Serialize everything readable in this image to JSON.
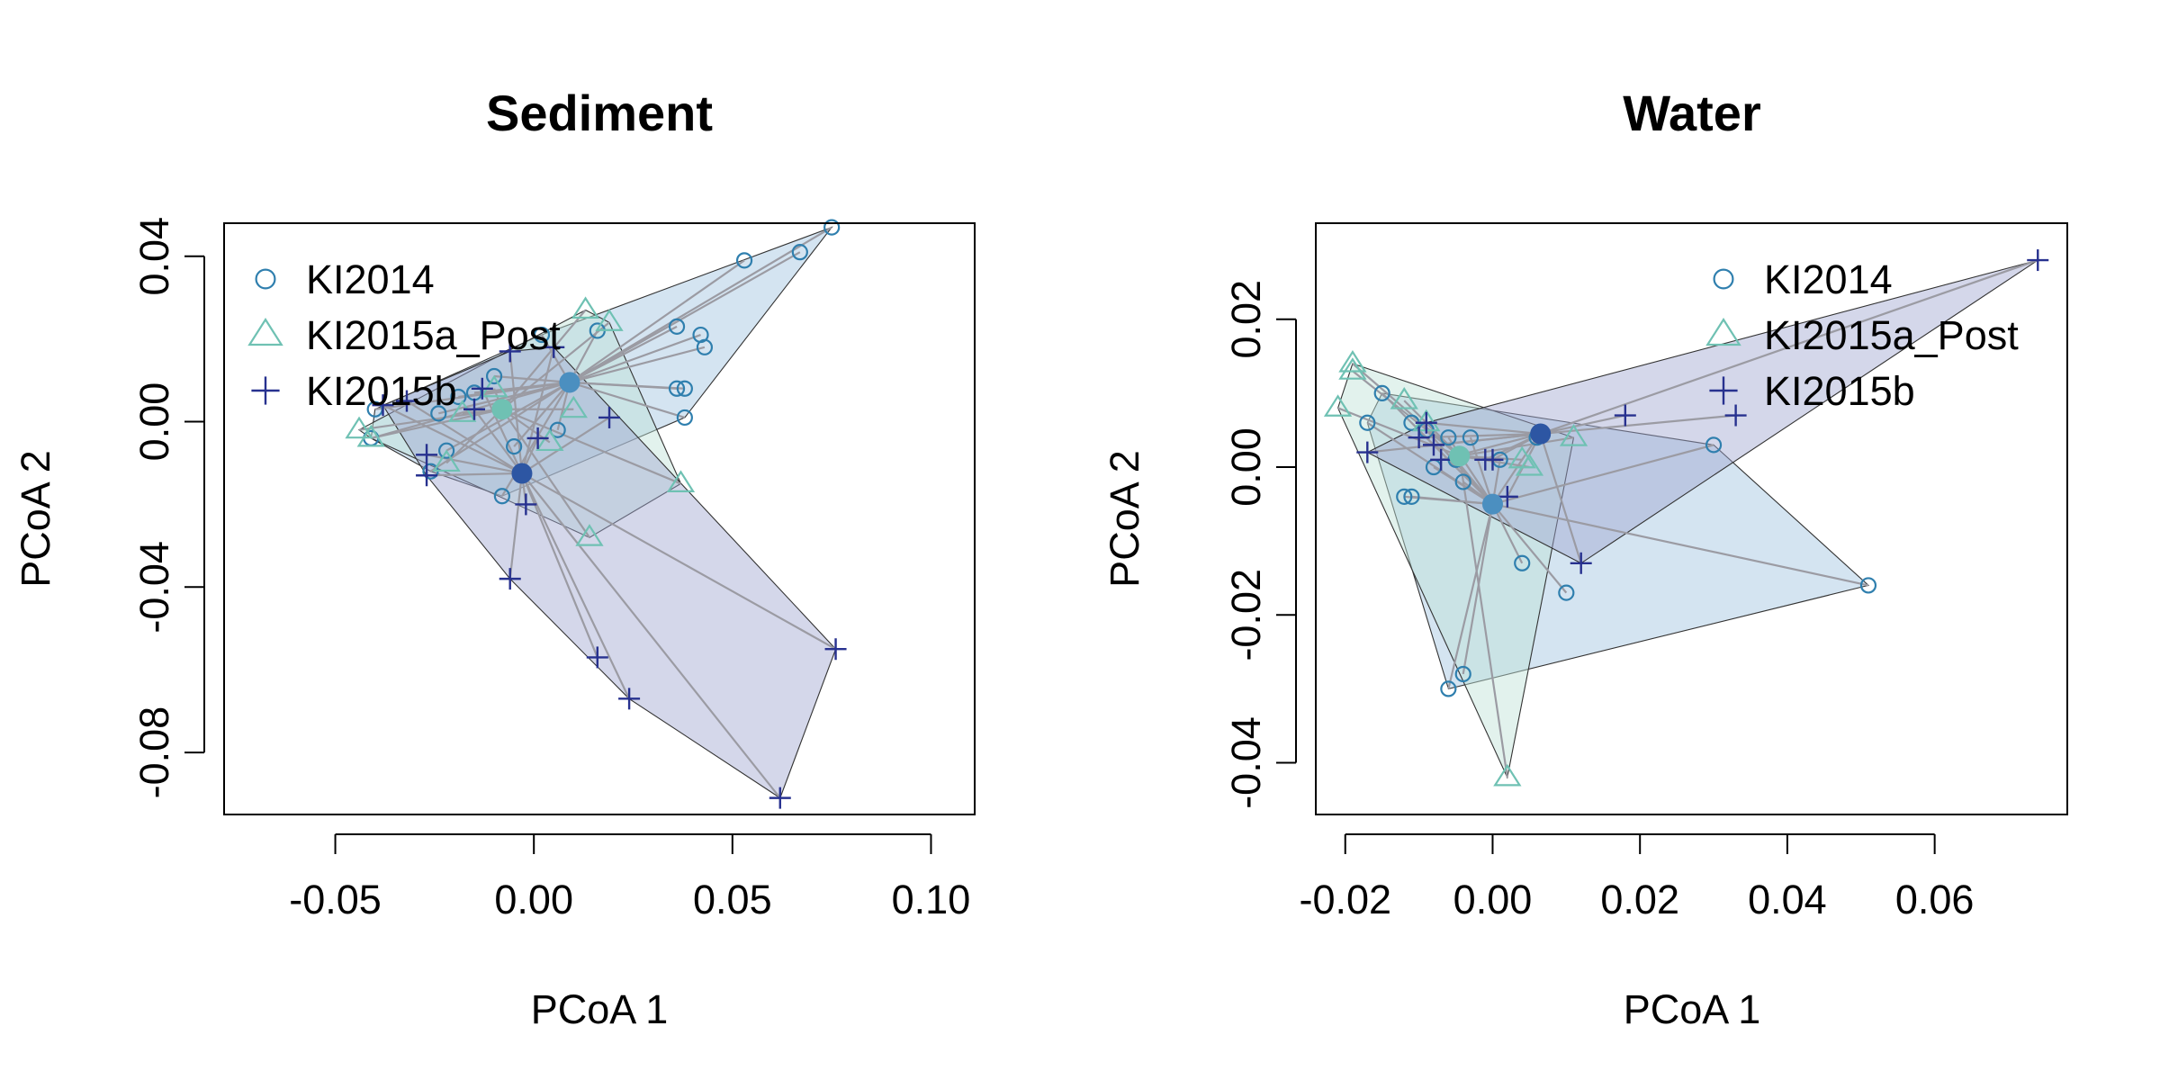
{
  "chart_data": [
    {
      "type": "scatter",
      "title": "Sediment",
      "xlabel": "PCoA 1",
      "ylabel": "PCoA 2",
      "xlim": [
        -0.078,
        0.111
      ],
      "ylim": [
        -0.095,
        0.048
      ],
      "xticks": [
        -0.05,
        0.0,
        0.05,
        0.1
      ],
      "xtick_labels": [
        "-0.05",
        "0.00",
        "0.05",
        "0.10"
      ],
      "yticks": [
        -0.08,
        -0.04,
        0.0,
        0.04
      ],
      "ytick_labels": [
        "-0.08",
        "-0.04",
        "0.00",
        "0.04"
      ],
      "legend_position": "top-left",
      "series": [
        {
          "name": "KI2014",
          "marker": "circle",
          "color": "#2f7fae",
          "fill": "#4b8fc0",
          "centroid": [
            0.009,
            0.0095
          ],
          "hull_color": "#9fc4e0",
          "points": [
            [
              0.075,
              0.047
            ],
            [
              0.067,
              0.041
            ],
            [
              0.053,
              0.039
            ],
            [
              0.042,
              0.021
            ],
            [
              0.043,
              0.018
            ],
            [
              0.036,
              0.023
            ],
            [
              0.036,
              0.008
            ],
            [
              0.038,
              0.008
            ],
            [
              0.038,
              0.001
            ],
            [
              0.016,
              0.022
            ],
            [
              0.002,
              0.021
            ],
            [
              0.009,
              0.009
            ],
            [
              -0.01,
              0.011
            ],
            [
              -0.015,
              0.007
            ],
            [
              -0.024,
              0.002
            ],
            [
              -0.019,
              0.006
            ],
            [
              -0.022,
              -0.007
            ],
            [
              -0.026,
              -0.012
            ],
            [
              -0.04,
              0.003
            ],
            [
              -0.041,
              -0.004
            ],
            [
              -0.005,
              -0.006
            ],
            [
              -0.008,
              -0.018
            ],
            [
              0.006,
              -0.002
            ]
          ]
        },
        {
          "name": "KI2015a_Post",
          "marker": "triangle",
          "color": "#6fc1b3",
          "fill": "#6fc1b3",
          "centroid": [
            -0.008,
            0.003
          ],
          "hull_color": "#bfe3d6",
          "points": [
            [
              0.013,
              0.027
            ],
            [
              0.019,
              0.024
            ],
            [
              0.037,
              -0.015
            ],
            [
              0.014,
              -0.028
            ],
            [
              -0.044,
              -0.002
            ],
            [
              -0.041,
              -0.004
            ],
            [
              -0.022,
              -0.01
            ],
            [
              0.004,
              -0.005
            ],
            [
              0.01,
              0.003
            ],
            [
              -0.01,
              0.008
            ],
            [
              -0.018,
              0.002
            ]
          ]
        },
        {
          "name": "KI2015b",
          "marker": "plus",
          "color": "#27318f",
          "fill": "#2d56a3",
          "centroid": [
            -0.003,
            -0.0125
          ],
          "hull_color": "#9fa6d0",
          "points": [
            [
              0.076,
              -0.055
            ],
            [
              0.062,
              -0.091
            ],
            [
              0.024,
              -0.067
            ],
            [
              0.016,
              -0.057
            ],
            [
              -0.006,
              -0.038
            ],
            [
              -0.002,
              -0.02
            ],
            [
              0.019,
              0.001
            ],
            [
              0.005,
              0.018
            ],
            [
              -0.006,
              0.017
            ],
            [
              -0.013,
              0.008
            ],
            [
              -0.015,
              0.003
            ],
            [
              -0.027,
              -0.008
            ],
            [
              -0.027,
              -0.013
            ],
            [
              -0.038,
              0.004
            ],
            [
              0.001,
              -0.004
            ],
            [
              -0.032,
              0.005
            ]
          ]
        }
      ]
    },
    {
      "type": "scatter",
      "title": "Water",
      "xlabel": "PCoA 1",
      "ylabel": "PCoA 2",
      "xlim": [
        -0.024,
        0.078
      ],
      "ylim": [
        -0.047,
        0.033
      ],
      "xticks": [
        -0.02,
        0.0,
        0.02,
        0.04,
        0.06
      ],
      "xtick_labels": [
        "-0.02",
        "0.00",
        "0.02",
        "0.04",
        "0.06"
      ],
      "yticks": [
        -0.04,
        -0.02,
        0.0,
        0.02
      ],
      "ytick_labels": [
        "-0.04",
        "-0.02",
        "0.00",
        "0.02"
      ],
      "legend_position": "top-right",
      "series": [
        {
          "name": "KI2014",
          "marker": "circle",
          "color": "#2f7fae",
          "fill": "#4b8fc0",
          "centroid": [
            0.0,
            -0.005
          ],
          "hull_color": "#9fc4e0",
          "points": [
            [
              0.051,
              -0.016
            ],
            [
              0.03,
              0.003
            ],
            [
              0.01,
              -0.017
            ],
            [
              0.004,
              -0.013
            ],
            [
              -0.004,
              -0.028
            ],
            [
              -0.006,
              -0.03
            ],
            [
              -0.011,
              -0.004
            ],
            [
              -0.012,
              -0.004
            ],
            [
              -0.017,
              0.006
            ],
            [
              -0.015,
              0.01
            ],
            [
              -0.011,
              0.006
            ],
            [
              -0.009,
              0.005
            ],
            [
              -0.008,
              0.0
            ],
            [
              -0.006,
              0.004
            ],
            [
              -0.005,
              0.001
            ],
            [
              -0.003,
              0.004
            ],
            [
              -0.004,
              -0.002
            ],
            [
              0.006,
              0.004
            ],
            [
              0.001,
              0.001
            ]
          ]
        },
        {
          "name": "KI2015a_Post",
          "marker": "triangle",
          "color": "#6fc1b3",
          "fill": "#6fc1b3",
          "centroid": [
            -0.0045,
            0.0015
          ],
          "hull_color": "#bfe3d6",
          "points": [
            [
              -0.019,
              0.014
            ],
            [
              -0.019,
              0.013
            ],
            [
              -0.021,
              0.008
            ],
            [
              -0.012,
              0.009
            ],
            [
              0.002,
              -0.042
            ],
            [
              0.004,
              0.001
            ],
            [
              0.005,
              0.0
            ],
            [
              0.011,
              0.004
            ],
            [
              -0.009,
              0.006
            ]
          ]
        },
        {
          "name": "KI2015b",
          "marker": "plus",
          "color": "#27318f",
          "fill": "#2d56a3",
          "centroid": [
            0.0065,
            0.0045
          ],
          "hull_color": "#9fa6d0",
          "points": [
            [
              0.074,
              0.028
            ],
            [
              0.033,
              0.007
            ],
            [
              0.018,
              0.007
            ],
            [
              0.012,
              -0.013
            ],
            [
              0.002,
              -0.004
            ],
            [
              -0.017,
              0.002
            ],
            [
              -0.01,
              0.004
            ],
            [
              -0.009,
              0.006
            ],
            [
              -0.008,
              0.003
            ],
            [
              -0.007,
              0.001
            ],
            [
              -0.001,
              0.001
            ],
            [
              0.0,
              0.001
            ]
          ]
        }
      ]
    }
  ]
}
